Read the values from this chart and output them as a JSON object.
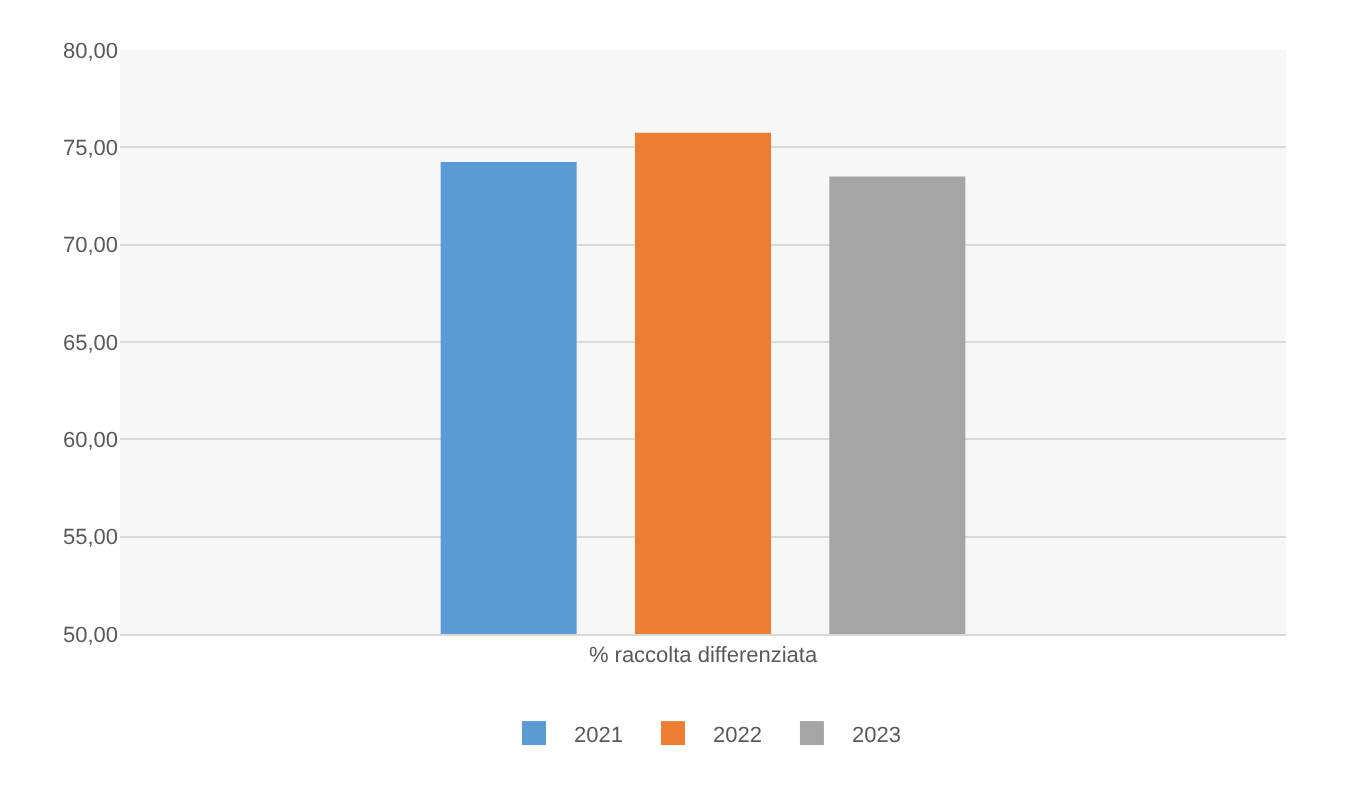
{
  "chart_data": {
    "type": "bar",
    "categories": [
      "% raccolta differenziata"
    ],
    "series": [
      {
        "name": "2021",
        "color": "#5b9bd5",
        "values": [
          74.25
        ]
      },
      {
        "name": "2022",
        "color": "#ed7d31",
        "values": [
          75.75
        ]
      },
      {
        "name": "2023",
        "color": "#a5a5a5",
        "values": [
          73.5
        ]
      }
    ],
    "ylim": [
      50,
      80
    ],
    "yticks": [
      {
        "value": 50,
        "label": "50,00"
      },
      {
        "value": 55,
        "label": "55,00"
      },
      {
        "value": 60,
        "label": "60,00"
      },
      {
        "value": 65,
        "label": "65,00"
      },
      {
        "value": 70,
        "label": "70,00"
      },
      {
        "value": 75,
        "label": "75,00"
      },
      {
        "value": 80,
        "label": "80,00"
      }
    ],
    "grid": "y",
    "legend": "bottom"
  }
}
